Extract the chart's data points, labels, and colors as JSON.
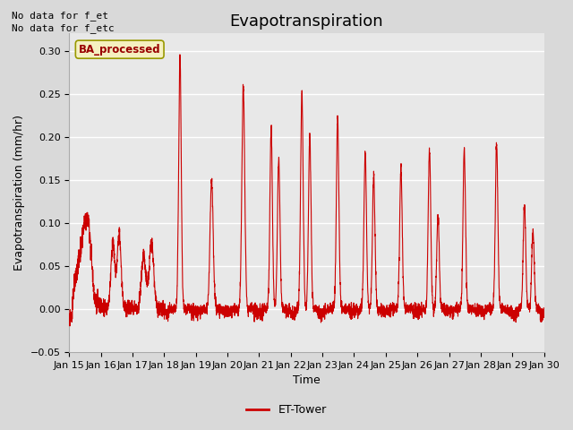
{
  "title": "Evapotranspiration",
  "xlabel": "Time",
  "ylabel": "Evapotranspiration (mm/hr)",
  "ylim": [
    -0.05,
    0.32
  ],
  "yticks": [
    -0.05,
    0.0,
    0.05,
    0.1,
    0.15,
    0.2,
    0.25,
    0.3
  ],
  "xtick_labels": [
    "Jan 15",
    "Jan 16",
    "Jan 17",
    "Jan 18",
    "Jan 19",
    "Jan 20",
    "Jan 21",
    "Jan 22",
    "Jan 23",
    "Jan 24",
    "Jan 25",
    "Jan 26",
    "Jan 27",
    "Jan 28",
    "Jan 29",
    "Jan 30"
  ],
  "line_color": "#cc0000",
  "line_width": 0.8,
  "fig_bg_color": "#d9d9d9",
  "plot_bg_color": "#e8e8e8",
  "grid_color": "#ffffff",
  "title_fontsize": 13,
  "axis_label_fontsize": 9,
  "tick_fontsize": 8,
  "top_left_text1": "No data for f_et",
  "top_left_text2": "No data for f_etc",
  "legend_label": "ET-Tower",
  "legend_box_label": "BA_processed",
  "legend_box_facecolor": "#f5f0c0",
  "legend_box_edgecolor": "#999900",
  "legend_box_textcolor": "#990000"
}
